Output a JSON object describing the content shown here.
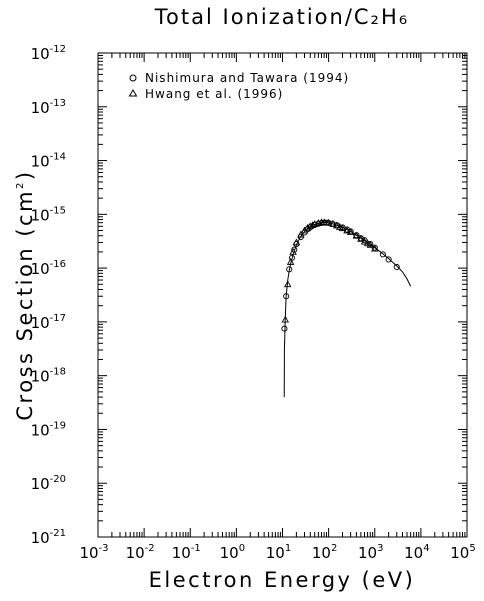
{
  "chart_data": {
    "type": "scatter",
    "title": "Total Ionization/C₂H₆",
    "xlabel": "Electron Energy (eV)",
    "ylabel_prefix": "Cross Section (cm",
    "ylabel_sup": "2",
    "ylabel_suffix": ")",
    "x_scale": "log",
    "y_scale": "log",
    "xlim": [
      0.001,
      100000
    ],
    "ylim": [
      1e-21,
      1e-12
    ],
    "x_ticks": [
      {
        "base": "10",
        "exp": "-3"
      },
      {
        "base": "10",
        "exp": "-2"
      },
      {
        "base": "10",
        "exp": "-1"
      },
      {
        "base": "10",
        "exp": "0"
      },
      {
        "base": "10",
        "exp": "1"
      },
      {
        "base": "10",
        "exp": "2"
      },
      {
        "base": "10",
        "exp": "3"
      },
      {
        "base": "10",
        "exp": "4"
      },
      {
        "base": "10",
        "exp": "5"
      }
    ],
    "y_ticks": [
      {
        "base": "10",
        "exp": "-21"
      },
      {
        "base": "10",
        "exp": "-20"
      },
      {
        "base": "10",
        "exp": "-19"
      },
      {
        "base": "10",
        "exp": "-18"
      },
      {
        "base": "10",
        "exp": "-17"
      },
      {
        "base": "10",
        "exp": "-16"
      },
      {
        "base": "10",
        "exp": "-15"
      },
      {
        "base": "10",
        "exp": "-14"
      },
      {
        "base": "10",
        "exp": "-13"
      },
      {
        "base": "10",
        "exp": "-12"
      }
    ],
    "grid": false,
    "legend_position": "top-left",
    "series": [
      {
        "name": "Nishimura and Tawara (1994)",
        "marker": "circle",
        "points": [
          [
            11,
            7.5e-18
          ],
          [
            12,
            3e-17
          ],
          [
            14,
            9.5e-17
          ],
          [
            16,
            1.55e-16
          ],
          [
            18,
            2.2e-16
          ],
          [
            20,
            2.8e-16
          ],
          [
            25,
            3.8e-16
          ],
          [
            30,
            4.6e-16
          ],
          [
            35,
            5.3e-16
          ],
          [
            40,
            5.8e-16
          ],
          [
            50,
            6.4e-16
          ],
          [
            60,
            6.7e-16
          ],
          [
            70,
            6.9e-16
          ],
          [
            80,
            7e-16
          ],
          [
            90,
            7e-16
          ],
          [
            100,
            6.9e-16
          ],
          [
            120,
            6.7e-16
          ],
          [
            150,
            6.3e-16
          ],
          [
            200,
            5.7e-16
          ],
          [
            250,
            5.2e-16
          ],
          [
            300,
            4.8e-16
          ],
          [
            400,
            4.1e-16
          ],
          [
            500,
            3.6e-16
          ],
          [
            600,
            3.3e-16
          ],
          [
            800,
            2.8e-16
          ],
          [
            1000,
            2.4e-16
          ],
          [
            1500,
            1.8e-16
          ],
          [
            2000,
            1.45e-16
          ],
          [
            3000,
            1.05e-16
          ]
        ]
      },
      {
        "name": "Hwang et al. (1996)",
        "marker": "triangle",
        "points": [
          [
            11.5,
            1.1e-17
          ],
          [
            13,
            5e-17
          ],
          [
            15,
            1.3e-16
          ],
          [
            17,
            2e-16
          ],
          [
            20,
            3e-16
          ],
          [
            25,
            4.2e-16
          ],
          [
            30,
            5e-16
          ],
          [
            35,
            5.6e-16
          ],
          [
            40,
            6e-16
          ],
          [
            45,
            6.3e-16
          ],
          [
            50,
            6.6e-16
          ],
          [
            60,
            6.9e-16
          ],
          [
            70,
            7.1e-16
          ],
          [
            80,
            7.1e-16
          ],
          [
            100,
            7e-16
          ],
          [
            125,
            6.6e-16
          ],
          [
            150,
            6.2e-16
          ],
          [
            175,
            5.8e-16
          ],
          [
            200,
            5.5e-16
          ],
          [
            250,
            5e-16
          ],
          [
            300,
            4.7e-16
          ],
          [
            400,
            4e-16
          ],
          [
            500,
            3.5e-16
          ],
          [
            600,
            3.1e-16
          ],
          [
            700,
            2.9e-16
          ],
          [
            800,
            2.7e-16
          ],
          [
            1000,
            2.3e-16
          ]
        ]
      }
    ],
    "fit_curve": {
      "points": [
        [
          10.9,
          4e-19
        ],
        [
          11,
          3e-18
        ],
        [
          11.5,
          1.2e-17
        ],
        [
          12,
          3e-17
        ],
        [
          13,
          6e-17
        ],
        [
          14,
          9e-17
        ],
        [
          15,
          1.2e-16
        ],
        [
          17,
          1.8e-16
        ],
        [
          20,
          2.7e-16
        ],
        [
          25,
          3.9e-16
        ],
        [
          30,
          4.8e-16
        ],
        [
          40,
          5.9e-16
        ],
        [
          50,
          6.5e-16
        ],
        [
          60,
          6.8e-16
        ],
        [
          70,
          7e-16
        ],
        [
          80,
          7.05e-16
        ],
        [
          100,
          6.95e-16
        ],
        [
          120,
          6.7e-16
        ],
        [
          150,
          6.3e-16
        ],
        [
          200,
          5.7e-16
        ],
        [
          300,
          4.8e-16
        ],
        [
          400,
          4.1e-16
        ],
        [
          500,
          3.6e-16
        ],
        [
          700,
          3e-16
        ],
        [
          1000,
          2.4e-16
        ],
        [
          1500,
          1.85e-16
        ],
        [
          2000,
          1.5e-16
        ],
        [
          3000,
          1.1e-16
        ],
        [
          4000,
          8.5e-17
        ],
        [
          5000,
          6.3e-17
        ],
        [
          6000,
          4.6e-17
        ]
      ]
    }
  }
}
